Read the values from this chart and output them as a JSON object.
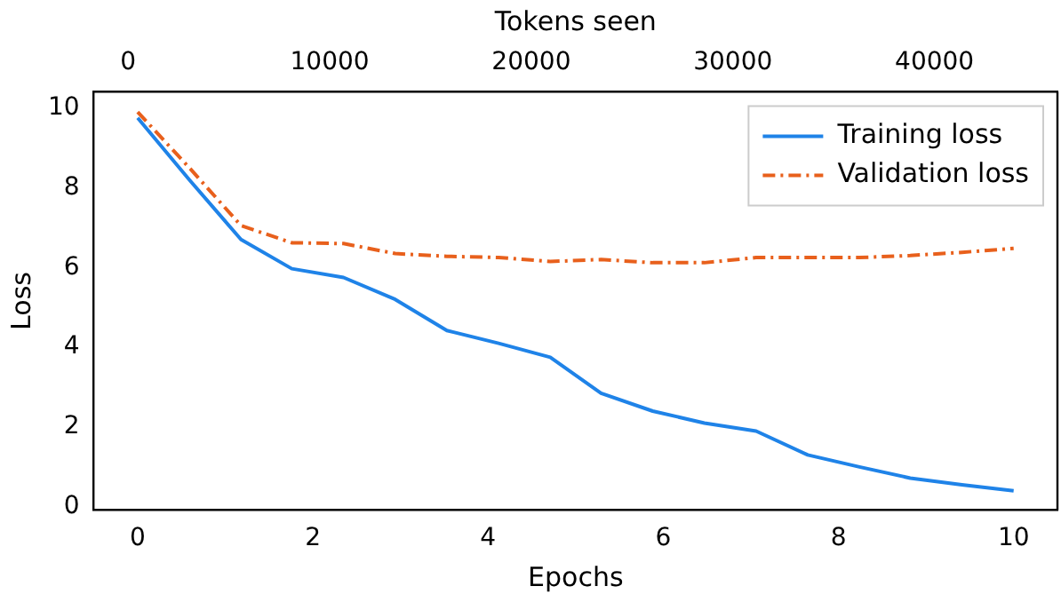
{
  "chart_data": {
    "type": "line",
    "xlabel": "Epochs",
    "ylabel": "Loss",
    "x2label": "Tokens seen",
    "x": [
      0,
      0.59,
      1.18,
      1.76,
      2.35,
      2.94,
      3.53,
      4.12,
      4.71,
      5.29,
      5.88,
      6.47,
      7.06,
      7.65,
      8.24,
      8.82,
      9.41,
      10
    ],
    "series": [
      {
        "name": "Training loss",
        "color": "#1f83e8",
        "line_style": "solid",
        "values": [
          9.75,
          8.2,
          6.7,
          5.97,
          5.75,
          5.2,
          4.42,
          4.1,
          3.75,
          2.85,
          2.4,
          2.1,
          1.9,
          1.3,
          1.0,
          0.72,
          0.55,
          0.4
        ]
      },
      {
        "name": "Validation loss",
        "color": "#e8601c",
        "line_style": "dashdot",
        "values": [
          9.9,
          8.5,
          7.05,
          6.62,
          6.6,
          6.35,
          6.28,
          6.25,
          6.15,
          6.2,
          6.12,
          6.12,
          6.25,
          6.25,
          6.25,
          6.3,
          6.38,
          6.48
        ]
      }
    ],
    "xlim": [
      -0.5,
      10.5
    ],
    "xticks": [
      0,
      2,
      4,
      6,
      8,
      10
    ],
    "x2lim": [
      -1700,
      46100
    ],
    "x2ticks": [
      0,
      10000,
      20000,
      30000,
      40000
    ],
    "ylim": [
      -0.08,
      10.4
    ],
    "yticks": [
      0,
      2,
      4,
      6,
      8,
      10
    ],
    "grid": false,
    "legend": "top right",
    "marker": "none"
  }
}
